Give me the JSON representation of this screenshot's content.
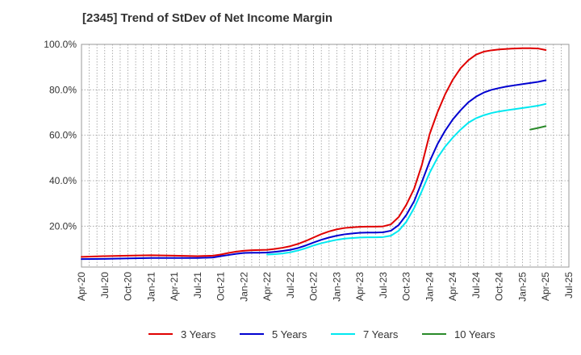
{
  "chart_data": {
    "type": "line",
    "title": "[2345]  Trend of StDev of Net Income Margin",
    "xlabel": "",
    "ylabel": "",
    "x_ticks": [
      "Apr-20",
      "Jul-20",
      "Oct-20",
      "Jan-21",
      "Apr-21",
      "Jul-21",
      "Oct-21",
      "Jan-22",
      "Apr-22",
      "Jul-22",
      "Oct-22",
      "Jan-23",
      "Apr-23",
      "Jul-23",
      "Oct-23",
      "Jan-24",
      "Apr-24",
      "Jul-24",
      "Oct-24",
      "Jan-25",
      "Apr-25",
      "Jul-25"
    ],
    "y_ticks": [
      "20.0%",
      "40.0%",
      "60.0%",
      "80.0%",
      "100.0%"
    ],
    "y_tick_values": [
      20,
      40,
      60,
      80,
      100
    ],
    "ylim": [
      2,
      100
    ],
    "grid": true,
    "legend_position": "bottom",
    "series": [
      {
        "name": "3 Years",
        "color": "#e00000",
        "x": [
          "Apr-20",
          "Jul-20",
          "Oct-20",
          "Jan-21",
          "Apr-21",
          "Jul-21",
          "Sep-21",
          "Oct-21",
          "Nov-21",
          "Dec-21",
          "Jan-22",
          "Feb-22",
          "Mar-22",
          "Apr-22",
          "May-22",
          "Jun-22",
          "Jul-22",
          "Aug-22",
          "Sep-22",
          "Oct-22",
          "Nov-22",
          "Dec-22",
          "Jan-23",
          "Feb-23",
          "Mar-23",
          "Apr-23",
          "May-23",
          "Jun-23",
          "Jul-23",
          "Aug-23",
          "Sep-23",
          "Oct-23",
          "Nov-23",
          "Dec-23",
          "Jan-24",
          "Feb-24",
          "Mar-24",
          "Apr-24",
          "May-24",
          "Jun-24",
          "Jul-24",
          "Aug-24",
          "Sep-24",
          "Oct-24",
          "Nov-24",
          "Dec-24",
          "Jan-25",
          "Feb-25",
          "Mar-25",
          "Apr-25"
        ],
        "values": [
          6.5,
          6.8,
          7.0,
          7.2,
          7.0,
          6.8,
          7.0,
          7.5,
          8.2,
          8.8,
          9.2,
          9.4,
          9.5,
          9.6,
          10.0,
          10.5,
          11.2,
          12.2,
          13.5,
          15.0,
          16.5,
          17.7,
          18.6,
          19.2,
          19.5,
          19.7,
          19.8,
          19.8,
          19.9,
          20.8,
          24.0,
          29.5,
          36.5,
          47.0,
          60.5,
          70.0,
          78.0,
          84.5,
          89.5,
          93.0,
          95.5,
          96.8,
          97.4,
          97.8,
          98.0,
          98.2,
          98.3,
          98.3,
          98.2,
          97.5
        ]
      },
      {
        "name": "5 Years",
        "color": "#0000d0",
        "x": [
          "Apr-20",
          "Jul-20",
          "Oct-20",
          "Jan-21",
          "Apr-21",
          "Jul-21",
          "Sep-21",
          "Oct-21",
          "Nov-21",
          "Dec-21",
          "Jan-22",
          "Feb-22",
          "Mar-22",
          "Apr-22",
          "May-22",
          "Jun-22",
          "Jul-22",
          "Aug-22",
          "Sep-22",
          "Oct-22",
          "Nov-22",
          "Dec-22",
          "Jan-23",
          "Feb-23",
          "Mar-23",
          "Apr-23",
          "May-23",
          "Jun-23",
          "Jul-23",
          "Aug-23",
          "Sep-23",
          "Oct-23",
          "Nov-23",
          "Dec-23",
          "Jan-24",
          "Feb-24",
          "Mar-24",
          "Apr-24",
          "May-24",
          "Jun-24",
          "Jul-24",
          "Aug-24",
          "Sep-24",
          "Oct-24",
          "Nov-24",
          "Dec-24",
          "Jan-25",
          "Feb-25",
          "Mar-25",
          "Apr-25"
        ],
        "values": [
          5.5,
          5.6,
          5.8,
          6.0,
          6.0,
          6.0,
          6.2,
          6.8,
          7.3,
          7.8,
          8.2,
          8.3,
          8.3,
          8.4,
          8.7,
          9.1,
          9.6,
          10.4,
          11.5,
          12.8,
          14.0,
          15.0,
          15.8,
          16.4,
          16.8,
          17.1,
          17.2,
          17.2,
          17.3,
          18.0,
          20.5,
          25.0,
          31.0,
          39.5,
          48.5,
          56.0,
          62.0,
          67.0,
          71.0,
          74.5,
          77.0,
          78.8,
          80.0,
          80.8,
          81.5,
          82.0,
          82.5,
          83.0,
          83.5,
          84.2
        ]
      },
      {
        "name": "7 Years",
        "color": "#00e8f0",
        "x": [
          "Apr-22",
          "May-22",
          "Jun-22",
          "Jul-22",
          "Aug-22",
          "Sep-22",
          "Oct-22",
          "Nov-22",
          "Dec-22",
          "Jan-23",
          "Feb-23",
          "Mar-23",
          "Apr-23",
          "May-23",
          "Jun-23",
          "Jul-23",
          "Aug-23",
          "Sep-23",
          "Oct-23",
          "Nov-23",
          "Dec-23",
          "Jan-24",
          "Feb-24",
          "Mar-24",
          "Apr-24",
          "May-24",
          "Jun-24",
          "Jul-24",
          "Aug-24",
          "Sep-24",
          "Oct-24",
          "Nov-24",
          "Dec-24",
          "Jan-25",
          "Feb-25",
          "Mar-25",
          "Apr-25"
        ],
        "values": [
          7.5,
          7.7,
          8.0,
          8.5,
          9.3,
          10.3,
          11.5,
          12.5,
          13.3,
          14.0,
          14.5,
          14.8,
          15.0,
          15.1,
          15.1,
          15.2,
          15.8,
          18.0,
          22.0,
          28.0,
          35.5,
          43.5,
          50.0,
          55.0,
          59.0,
          62.5,
          65.5,
          67.5,
          68.8,
          69.8,
          70.5,
          71.0,
          71.5,
          72.0,
          72.5,
          73.0,
          73.8
        ]
      },
      {
        "name": "10 Years",
        "color": "#2a8a2a",
        "x": [
          "Feb-25",
          "Mar-25",
          "Apr-25"
        ],
        "values": [
          62.5,
          63.2,
          64.0
        ]
      }
    ]
  }
}
